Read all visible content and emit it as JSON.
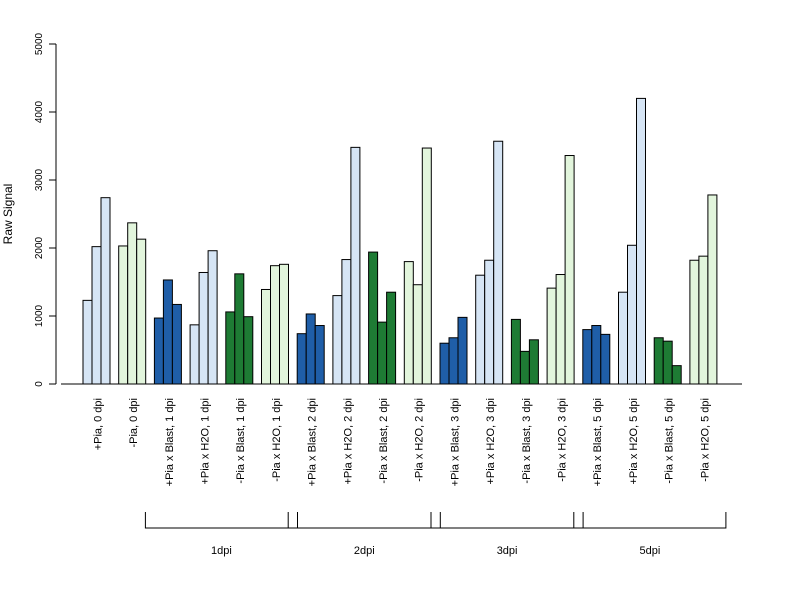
{
  "chart_data": {
    "type": "bar",
    "ylabel": "Raw Signal",
    "xlabel": "",
    "title": "",
    "ylim": [
      0,
      5000
    ],
    "yticks": [
      0,
      1000,
      2000,
      3000,
      4000,
      5000
    ],
    "grid": false,
    "legend": "none",
    "categories": [
      "+Pia, 0 dpi",
      "-Pia, 0 dpi",
      "+Pia x Blast, 1 dpi",
      "+Pia x H2O, 1 dpi",
      "-Pia x Blast, 1 dpi",
      "-Pia x H2O, 1 dpi",
      "+Pia x Blast, 2 dpi",
      "+Pia x H2O, 2 dpi",
      "-Pia x Blast, 2 dpi",
      "-Pia x H2O, 2 dpi",
      "+Pia x Blast, 3 dpi",
      "+Pia x H2O, 3 dpi",
      "-Pia x Blast, 3 dpi",
      "-Pia x H2O, 3 dpi",
      "+Pia x Blast, 5 dpi",
      "+Pia x H2O, 5 dpi",
      "-Pia x Blast, 5 dpi",
      "-Pia x H2O, 5 dpi"
    ],
    "colors": [
      "#d6e5f5",
      "#e2f5dc",
      "#1f5ea8",
      "#d6e5f5",
      "#1e7b34",
      "#e2f5dc",
      "#1f5ea8",
      "#d6e5f5",
      "#1e7b34",
      "#e2f5dc",
      "#1f5ea8",
      "#d6e5f5",
      "#1e7b34",
      "#e2f5dc",
      "#1f5ea8",
      "#d6e5f5",
      "#1e7b34",
      "#e2f5dc"
    ],
    "replicates": [
      [
        1230,
        2020,
        2740
      ],
      [
        2030,
        2370,
        2130
      ],
      [
        970,
        1530,
        1170
      ],
      [
        870,
        1640,
        1960
      ],
      [
        1060,
        1620,
        990
      ],
      [
        1390,
        1740,
        1760
      ],
      [
        740,
        1030,
        860
      ],
      [
        1300,
        1830,
        3480
      ],
      [
        1940,
        910,
        1350
      ],
      [
        1800,
        1460,
        3470
      ],
      [
        600,
        680,
        980
      ],
      [
        1600,
        1820,
        3570
      ],
      [
        950,
        480,
        650
      ],
      [
        1410,
        1610,
        3360
      ],
      [
        800,
        860,
        730
      ],
      [
        1350,
        2040,
        4200
      ],
      [
        680,
        630,
        270
      ],
      [
        1820,
        1880,
        2780
      ]
    ],
    "groups": [
      {
        "label": "1dpi",
        "from": 2,
        "to": 5
      },
      {
        "label": "2dpi",
        "from": 6,
        "to": 9
      },
      {
        "label": "3dpi",
        "from": 10,
        "to": 13
      },
      {
        "label": "5dpi",
        "from": 14,
        "to": 17
      }
    ]
  }
}
